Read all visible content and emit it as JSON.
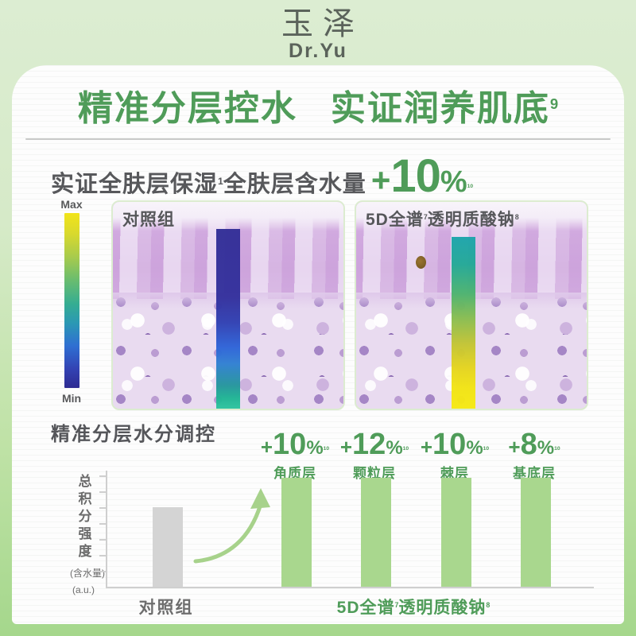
{
  "brand": {
    "logo_cn": "玉泽",
    "logo_en": "Dr.Yu"
  },
  "title": {
    "part1": "精准分层控水",
    "part2": "实证润养肌底",
    "sup": "9"
  },
  "subtitle": {
    "text1": "实证全肤层保湿",
    "sup1": "1",
    "text2": "全肤层含水量",
    "highlight_sign": "+",
    "highlight_num": "10",
    "highlight_pct": "%",
    "highlight_sup": "10"
  },
  "colorbar": {
    "max_label": "Max",
    "min_label": "Min"
  },
  "micrographs": [
    {
      "label": "对照组"
    },
    {
      "label_prefix": "5D全谱",
      "label_sup1": "7",
      "label_mid": "透明质酸钠",
      "label_sup2": "8"
    }
  ],
  "colors": {
    "accent_green": "#4f9c59",
    "bar_green": "#a9d78e",
    "control_gray": "#d4d4d4",
    "bg_top": "#dcedd2",
    "bg_bottom": "#a5d78c"
  },
  "chart_data": {
    "type": "bar",
    "title": "精准分层水分调控",
    "ylabel": "总积分强度",
    "ylabel_sub": "(含水量)",
    "ylabel_unit": "(a.u.)",
    "x_control_label": "对照组",
    "x_group_label": {
      "prefix": "5D全谱",
      "sup1": "7",
      "mid": "透明质酸钠",
      "sup2": "8"
    },
    "categories": [
      "对照组",
      "角质层",
      "颗粒层",
      "棘层",
      "基底层"
    ],
    "grid": false,
    "axis_note": "relative integrated intensity, unlabeled ticks",
    "bars": [
      {
        "category": "对照组",
        "height_rel": 0.73,
        "color": "#d4d4d4"
      },
      {
        "category": "角质层",
        "delta_sign": "+",
        "delta_num": "10",
        "percent_sign": "%",
        "footnote": "10",
        "height_rel": 1.0,
        "color": "#a9d78e"
      },
      {
        "category": "颗粒层",
        "delta_sign": "+",
        "delta_num": "12",
        "percent_sign": "%",
        "footnote": "10",
        "height_rel": 1.0,
        "color": "#a9d78e"
      },
      {
        "category": "棘层",
        "delta_sign": "+",
        "delta_num": "10",
        "percent_sign": "%",
        "footnote": "10",
        "height_rel": 1.0,
        "color": "#a9d78e"
      },
      {
        "category": "基底层",
        "delta_sign": "+",
        "delta_num": "8",
        "percent_sign": "%",
        "footnote": "10",
        "height_rel": 1.0,
        "color": "#a9d78e"
      }
    ]
  }
}
